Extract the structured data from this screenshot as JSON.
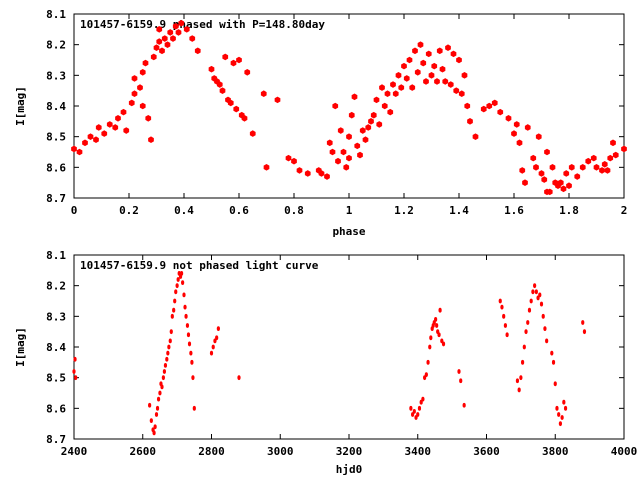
{
  "chart_data": [
    {
      "type": "scatter",
      "title": "101457-6159.9 phased with P=148.80day",
      "xlabel": "phase",
      "ylabel": "I[mag]",
      "xlim": [
        0,
        2
      ],
      "ylim": [
        8.7,
        8.1
      ],
      "y_inverted": true,
      "grid": false,
      "marker_color": "#ff0000",
      "marker": "filled-hexagon",
      "x_ticks": [
        "0",
        "0.2",
        "0.4",
        "0.6",
        "0.8",
        "1",
        "1.2",
        "1.4",
        "1.6",
        "1.8",
        "2"
      ],
      "y_ticks": [
        "8.1",
        "8.2",
        "8.3",
        "8.4",
        "8.5",
        "8.6",
        "8.7"
      ],
      "series": [
        {
          "points": [
            [
              0.0,
              8.54
            ],
            [
              0.02,
              8.55
            ],
            [
              0.04,
              8.52
            ],
            [
              0.06,
              8.5
            ],
            [
              0.08,
              8.51
            ],
            [
              0.09,
              8.47
            ],
            [
              0.11,
              8.49
            ],
            [
              0.13,
              8.46
            ],
            [
              0.15,
              8.47
            ],
            [
              0.16,
              8.44
            ],
            [
              0.18,
              8.42
            ],
            [
              0.19,
              8.48
            ],
            [
              0.21,
              8.39
            ],
            [
              0.22,
              8.36
            ],
            [
              0.22,
              8.31
            ],
            [
              0.24,
              8.34
            ],
            [
              0.25,
              8.29
            ],
            [
              0.25,
              8.4
            ],
            [
              0.26,
              8.26
            ],
            [
              0.27,
              8.44
            ],
            [
              0.28,
              8.51
            ],
            [
              0.29,
              8.24
            ],
            [
              0.3,
              8.21
            ],
            [
              0.31,
              8.19
            ],
            [
              0.31,
              8.15
            ],
            [
              0.32,
              8.22
            ],
            [
              0.33,
              8.18
            ],
            [
              0.34,
              8.2
            ],
            [
              0.35,
              8.16
            ],
            [
              0.36,
              8.18
            ],
            [
              0.37,
              8.14
            ],
            [
              0.38,
              8.16
            ],
            [
              0.39,
              8.13
            ],
            [
              0.41,
              8.15
            ],
            [
              0.43,
              8.18
            ],
            [
              0.45,
              8.22
            ],
            [
              0.5,
              8.28
            ],
            [
              0.51,
              8.31
            ],
            [
              0.52,
              8.32
            ],
            [
              0.53,
              8.33
            ],
            [
              0.54,
              8.35
            ],
            [
              0.55,
              8.24
            ],
            [
              0.56,
              8.38
            ],
            [
              0.57,
              8.39
            ],
            [
              0.58,
              8.26
            ],
            [
              0.59,
              8.41
            ],
            [
              0.6,
              8.25
            ],
            [
              0.61,
              8.43
            ],
            [
              0.62,
              8.44
            ],
            [
              0.63,
              8.29
            ],
            [
              0.65,
              8.49
            ],
            [
              0.69,
              8.36
            ],
            [
              0.7,
              8.6
            ],
            [
              0.74,
              8.38
            ],
            [
              0.78,
              8.57
            ],
            [
              0.8,
              8.58
            ],
            [
              0.82,
              8.61
            ],
            [
              0.85,
              8.62
            ],
            [
              0.89,
              8.61
            ],
            [
              0.9,
              8.62
            ],
            [
              0.92,
              8.63
            ],
            [
              0.93,
              8.52
            ],
            [
              0.94,
              8.55
            ],
            [
              0.95,
              8.4
            ],
            [
              0.96,
              8.58
            ],
            [
              0.97,
              8.48
            ],
            [
              0.98,
              8.55
            ],
            [
              0.99,
              8.6
            ],
            [
              1.0,
              8.57
            ],
            [
              1.0,
              8.5
            ],
            [
              1.01,
              8.43
            ],
            [
              1.02,
              8.37
            ],
            [
              1.03,
              8.53
            ],
            [
              1.04,
              8.56
            ],
            [
              1.05,
              8.48
            ],
            [
              1.06,
              8.51
            ],
            [
              1.07,
              8.47
            ],
            [
              1.08,
              8.45
            ],
            [
              1.09,
              8.43
            ],
            [
              1.1,
              8.38
            ],
            [
              1.11,
              8.46
            ],
            [
              1.12,
              8.34
            ],
            [
              1.13,
              8.4
            ],
            [
              1.14,
              8.36
            ],
            [
              1.15,
              8.42
            ],
            [
              1.16,
              8.33
            ],
            [
              1.17,
              8.36
            ],
            [
              1.18,
              8.3
            ],
            [
              1.19,
              8.34
            ],
            [
              1.2,
              8.27
            ],
            [
              1.21,
              8.31
            ],
            [
              1.22,
              8.25
            ],
            [
              1.23,
              8.34
            ],
            [
              1.24,
              8.22
            ],
            [
              1.25,
              8.29
            ],
            [
              1.26,
              8.2
            ],
            [
              1.27,
              8.26
            ],
            [
              1.28,
              8.32
            ],
            [
              1.29,
              8.23
            ],
            [
              1.3,
              8.3
            ],
            [
              1.31,
              8.27
            ],
            [
              1.32,
              8.32
            ],
            [
              1.33,
              8.22
            ],
            [
              1.34,
              8.28
            ],
            [
              1.35,
              8.32
            ],
            [
              1.36,
              8.21
            ],
            [
              1.37,
              8.33
            ],
            [
              1.38,
              8.23
            ],
            [
              1.39,
              8.35
            ],
            [
              1.4,
              8.25
            ],
            [
              1.41,
              8.36
            ],
            [
              1.42,
              8.3
            ],
            [
              1.43,
              8.4
            ],
            [
              1.44,
              8.45
            ],
            [
              1.46,
              8.5
            ],
            [
              1.49,
              8.41
            ],
            [
              1.51,
              8.4
            ],
            [
              1.53,
              8.39
            ],
            [
              1.55,
              8.42
            ],
            [
              1.58,
              8.44
            ],
            [
              1.6,
              8.49
            ],
            [
              1.61,
              8.46
            ],
            [
              1.62,
              8.52
            ],
            [
              1.63,
              8.61
            ],
            [
              1.64,
              8.65
            ],
            [
              1.65,
              8.47
            ],
            [
              1.67,
              8.57
            ],
            [
              1.68,
              8.6
            ],
            [
              1.69,
              8.5
            ],
            [
              1.7,
              8.62
            ],
            [
              1.71,
              8.64
            ],
            [
              1.72,
              8.55
            ],
            [
              1.72,
              8.68
            ],
            [
              1.73,
              8.68
            ],
            [
              1.74,
              8.6
            ],
            [
              1.75,
              8.65
            ],
            [
              1.76,
              8.66
            ],
            [
              1.77,
              8.65
            ],
            [
              1.78,
              8.67
            ],
            [
              1.79,
              8.62
            ],
            [
              1.8,
              8.66
            ],
            [
              1.81,
              8.6
            ],
            [
              1.83,
              8.63
            ],
            [
              1.85,
              8.6
            ],
            [
              1.87,
              8.58
            ],
            [
              1.89,
              8.57
            ],
            [
              1.9,
              8.6
            ],
            [
              1.92,
              8.61
            ],
            [
              1.93,
              8.59
            ],
            [
              1.94,
              8.61
            ],
            [
              1.95,
              8.57
            ],
            [
              1.96,
              8.52
            ],
            [
              1.97,
              8.56
            ],
            [
              2.0,
              8.54
            ]
          ]
        }
      ]
    },
    {
      "type": "scatter",
      "title": "101457-6159.9 not phased light curve",
      "xlabel": "hjd0",
      "ylabel": "I[mag]",
      "xlim": [
        2400,
        4000
      ],
      "ylim": [
        8.7,
        8.1
      ],
      "y_inverted": true,
      "grid": false,
      "marker_color": "#ff0000",
      "marker": "small-filled-circle",
      "x_ticks": [
        "2400",
        "2600",
        "2800",
        "3000",
        "3200",
        "3400",
        "3600",
        "3800",
        "4000"
      ],
      "y_ticks": [
        "8.1",
        "8.2",
        "8.3",
        "8.4",
        "8.5",
        "8.6",
        "8.7"
      ],
      "series": [
        {
          "points": [
            [
              2400,
              8.48
            ],
            [
              2403,
              8.44
            ],
            [
              2405,
              8.5
            ],
            [
              2620,
              8.59
            ],
            [
              2625,
              8.64
            ],
            [
              2630,
              8.67
            ],
            [
              2633,
              8.68
            ],
            [
              2636,
              8.66
            ],
            [
              2640,
              8.62
            ],
            [
              2643,
              8.6
            ],
            [
              2646,
              8.57
            ],
            [
              2650,
              8.55
            ],
            [
              2653,
              8.52
            ],
            [
              2656,
              8.53
            ],
            [
              2660,
              8.5
            ],
            [
              2663,
              8.48
            ],
            [
              2666,
              8.46
            ],
            [
              2670,
              8.44
            ],
            [
              2673,
              8.42
            ],
            [
              2676,
              8.4
            ],
            [
              2680,
              8.38
            ],
            [
              2683,
              8.35
            ],
            [
              2686,
              8.3
            ],
            [
              2690,
              8.28
            ],
            [
              2693,
              8.25
            ],
            [
              2696,
              8.22
            ],
            [
              2700,
              8.2
            ],
            [
              2703,
              8.18
            ],
            [
              2706,
              8.16
            ],
            [
              2710,
              8.17
            ],
            [
              2713,
              8.16
            ],
            [
              2716,
              8.19
            ],
            [
              2720,
              8.23
            ],
            [
              2723,
              8.27
            ],
            [
              2726,
              8.3
            ],
            [
              2730,
              8.33
            ],
            [
              2733,
              8.36
            ],
            [
              2736,
              8.39
            ],
            [
              2740,
              8.42
            ],
            [
              2743,
              8.45
            ],
            [
              2746,
              8.5
            ],
            [
              2750,
              8.6
            ],
            [
              2800,
              8.42
            ],
            [
              2805,
              8.4
            ],
            [
              2810,
              8.38
            ],
            [
              2815,
              8.37
            ],
            [
              2820,
              8.34
            ],
            [
              2880,
              8.5
            ],
            [
              3380,
              8.6
            ],
            [
              3385,
              8.62
            ],
            [
              3390,
              8.61
            ],
            [
              3395,
              8.63
            ],
            [
              3400,
              8.62
            ],
            [
              3405,
              8.6
            ],
            [
              3410,
              8.58
            ],
            [
              3415,
              8.57
            ],
            [
              3420,
              8.5
            ],
            [
              3425,
              8.49
            ],
            [
              3430,
              8.45
            ],
            [
              3435,
              8.4
            ],
            [
              3438,
              8.37
            ],
            [
              3442,
              8.34
            ],
            [
              3445,
              8.33
            ],
            [
              3448,
              8.32
            ],
            [
              3452,
              8.31
            ],
            [
              3455,
              8.33
            ],
            [
              3458,
              8.35
            ],
            [
              3462,
              8.36
            ],
            [
              3465,
              8.28
            ],
            [
              3470,
              8.38
            ],
            [
              3475,
              8.39
            ],
            [
              3520,
              8.48
            ],
            [
              3525,
              8.51
            ],
            [
              3535,
              8.59
            ],
            [
              3640,
              8.25
            ],
            [
              3645,
              8.27
            ],
            [
              3650,
              8.3
            ],
            [
              3655,
              8.33
            ],
            [
              3660,
              8.36
            ],
            [
              3690,
              8.51
            ],
            [
              3695,
              8.54
            ],
            [
              3700,
              8.5
            ],
            [
              3705,
              8.45
            ],
            [
              3710,
              8.4
            ],
            [
              3715,
              8.35
            ],
            [
              3720,
              8.32
            ],
            [
              3725,
              8.28
            ],
            [
              3730,
              8.25
            ],
            [
              3735,
              8.22
            ],
            [
              3740,
              8.2
            ],
            [
              3745,
              8.22
            ],
            [
              3750,
              8.24
            ],
            [
              3755,
              8.23
            ],
            [
              3760,
              8.26
            ],
            [
              3765,
              8.3
            ],
            [
              3770,
              8.34
            ],
            [
              3775,
              8.38
            ],
            [
              3790,
              8.42
            ],
            [
              3795,
              8.45
            ],
            [
              3800,
              8.52
            ],
            [
              3805,
              8.6
            ],
            [
              3810,
              8.62
            ],
            [
              3815,
              8.65
            ],
            [
              3820,
              8.63
            ],
            [
              3825,
              8.58
            ],
            [
              3830,
              8.6
            ],
            [
              3880,
              8.32
            ],
            [
              3885,
              8.35
            ]
          ]
        }
      ]
    }
  ]
}
